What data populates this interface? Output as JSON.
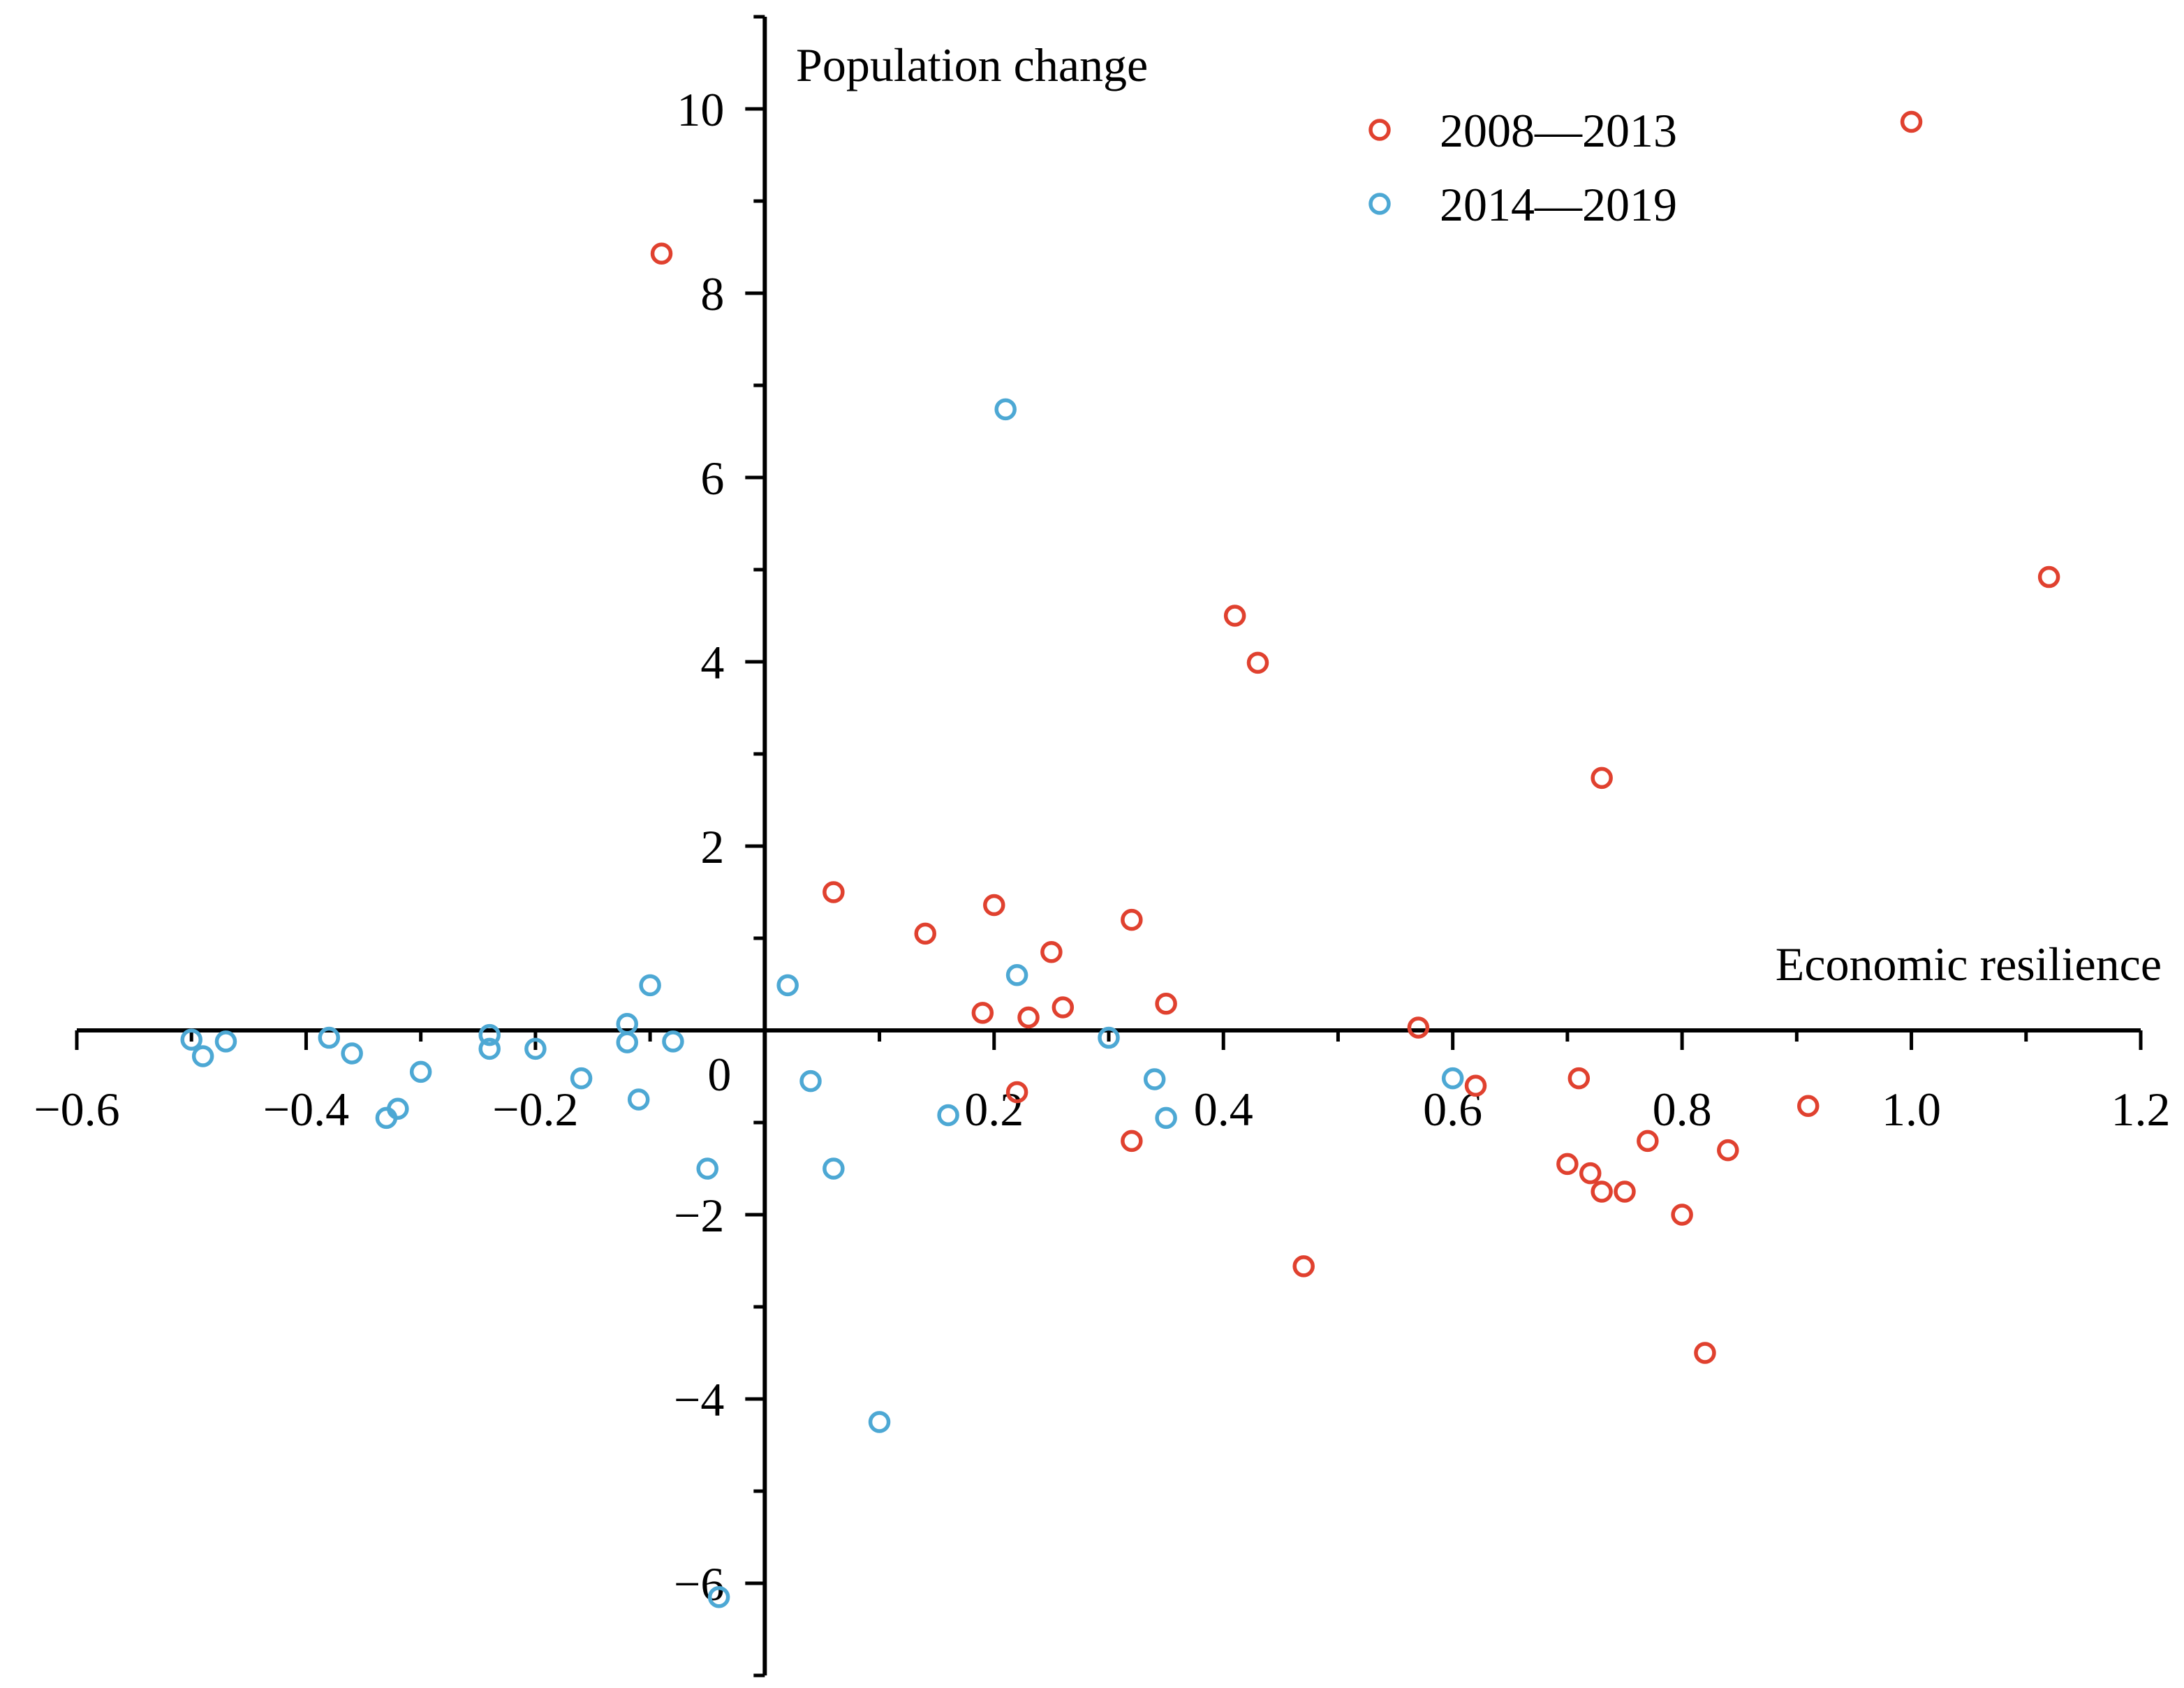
{
  "chart_data": {
    "type": "scatter",
    "title": "",
    "xlabel": "Economic resilience",
    "ylabel": "Population change",
    "xlim": [
      -0.6,
      1.2
    ],
    "ylim": [
      -7,
      11
    ],
    "x_ticks": [
      -0.6,
      -0.4,
      -0.2,
      0.2,
      0.4,
      0.6,
      0.8,
      1.0,
      1.2
    ],
    "x_tick_labels": [
      "−0.6",
      "−0.4",
      "−0.2",
      "0.2",
      "0.4",
      "0.6",
      "0.8",
      "1.0",
      "1.2"
    ],
    "y_ticks": [
      -6,
      -4,
      -2,
      0,
      2,
      4,
      6,
      8,
      10
    ],
    "y_tick_labels": [
      "−6",
      "−4",
      "−2",
      "0",
      "2",
      "4",
      "6",
      "8",
      "10"
    ],
    "grid": false,
    "legend_position": "top-right",
    "marker": "hollow-circle",
    "series": [
      {
        "name": "2008—2013",
        "color": "#E0412F",
        "points": [
          [
            -0.09,
            8.43
          ],
          [
            1.0,
            9.86
          ],
          [
            1.12,
            4.92
          ],
          [
            0.41,
            4.5
          ],
          [
            0.43,
            3.99
          ],
          [
            0.73,
            2.74
          ],
          [
            0.06,
            1.5
          ],
          [
            0.2,
            1.36
          ],
          [
            0.32,
            1.2
          ],
          [
            0.14,
            1.05
          ],
          [
            0.25,
            0.85
          ],
          [
            0.35,
            0.29
          ],
          [
            0.26,
            0.25
          ],
          [
            0.19,
            0.19
          ],
          [
            0.23,
            0.14
          ],
          [
            0.57,
            0.03
          ],
          [
            0.62,
            -0.6
          ],
          [
            0.71,
            -0.52
          ],
          [
            0.22,
            -0.67
          ],
          [
            0.91,
            -0.82
          ],
          [
            0.32,
            -1.2
          ],
          [
            0.77,
            -1.2
          ],
          [
            0.84,
            -1.3
          ],
          [
            0.7,
            -1.45
          ],
          [
            0.72,
            -1.55
          ],
          [
            0.73,
            -1.75
          ],
          [
            0.75,
            -1.75
          ],
          [
            0.8,
            -2.0
          ],
          [
            0.47,
            -2.56
          ],
          [
            0.82,
            -3.5
          ]
        ]
      },
      {
        "name": "2014—2019",
        "color": "#4DA8D4",
        "points": [
          [
            0.21,
            6.74
          ],
          [
            0.22,
            0.6
          ],
          [
            0.02,
            0.49
          ],
          [
            -0.1,
            0.49
          ],
          [
            -0.12,
            0.07
          ],
          [
            -0.24,
            -0.05
          ],
          [
            -0.5,
            -0.1
          ],
          [
            -0.47,
            -0.12
          ],
          [
            -0.38,
            -0.08
          ],
          [
            -0.12,
            -0.13
          ],
          [
            -0.08,
            -0.12
          ],
          [
            0.3,
            -0.08
          ],
          [
            -0.49,
            -0.28
          ],
          [
            -0.36,
            -0.25
          ],
          [
            -0.24,
            -0.2
          ],
          [
            -0.2,
            -0.2
          ],
          [
            -0.3,
            -0.45
          ],
          [
            -0.16,
            -0.52
          ],
          [
            0.04,
            -0.55
          ],
          [
            0.34,
            -0.53
          ],
          [
            0.6,
            -0.52
          ],
          [
            -0.32,
            -0.85
          ],
          [
            -0.33,
            -0.95
          ],
          [
            -0.11,
            -0.75
          ],
          [
            0.16,
            -0.92
          ],
          [
            0.35,
            -0.95
          ],
          [
            -0.05,
            -1.5
          ],
          [
            0.06,
            -1.5
          ],
          [
            0.1,
            -4.25
          ],
          [
            -0.04,
            -6.15
          ]
        ]
      }
    ]
  }
}
